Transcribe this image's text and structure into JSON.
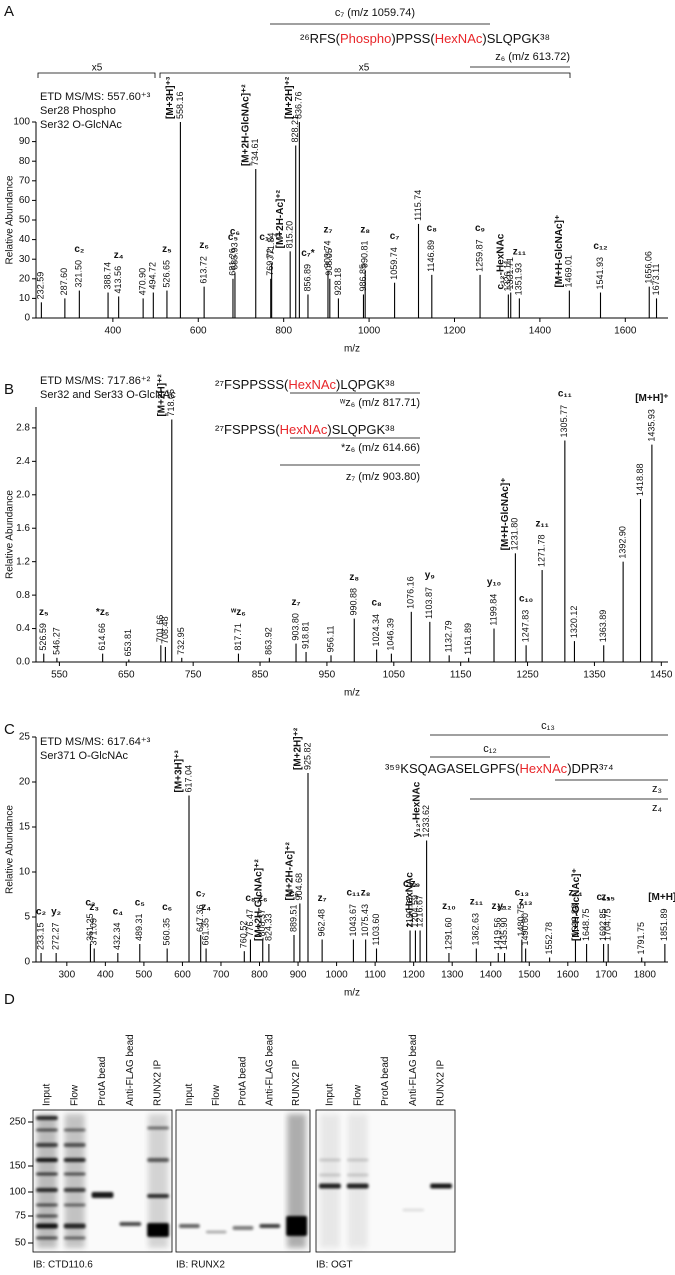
{
  "chart_data": [
    {
      "type": "stem",
      "panel": "A",
      "notes": [
        "ETD MS/MS: 557.60⁺³",
        "Ser28 Phospho",
        "Ser32 O-GlcNAc"
      ],
      "sequences": [
        [
          {
            "text": "²⁶RFS("
          },
          {
            "text": "Phospho",
            "color": "#e8262a"
          },
          {
            "text": ")PPSS("
          },
          {
            "text": "HexNAc",
            "color": "#e8262a"
          },
          {
            "text": ")SLQPGK³⁸"
          }
        ]
      ],
      "fragments": [
        "c₇ (m/z 1059.74)",
        "z₆ (m/z 613.72)"
      ],
      "scale_marks": [
        "x5",
        "x5"
      ],
      "x_label": "m/z",
      "y_label": "Relative Abundance",
      "xlim": [
        220,
        1700
      ],
      "xticks": [
        400,
        600,
        800,
        1000,
        1200,
        1400,
        1600
      ],
      "ylim": [
        0,
        100
      ],
      "yticks": [
        0,
        10,
        20,
        30,
        40,
        50,
        60,
        70,
        80,
        90,
        100
      ],
      "color": "#000000",
      "ion_color": "#2f63b0",
      "x": [
        232.59,
        {
          "value": 287.6,
          "label": "287.60"
        },
        {
          "value": 321.5,
          "label": "321.50"
        },
        388.74,
        413.56,
        {
          "value": 470.9,
          "label": "470.90"
        },
        494.72,
        526.65,
        558.16,
        613.72,
        681.26,
        685.93,
        734.61,
        769.72,
        771.84,
        {
          "value": 815.2,
          "label": "815.20"
        },
        828.21,
        836.76,
        856.89,
        903.74,
        908.05,
        928.18,
        986.85,
        990.81,
        1059.74,
        1115.74,
        1146.89,
        1259.87,
        1326.11,
        1331.71,
        1351.93,
        1469.01,
        1541.93,
        1656.06,
        1673.11
      ],
      "values": [
        8,
        10,
        14,
        13,
        11,
        10,
        13,
        14,
        100,
        16,
        20,
        23,
        76,
        20,
        28,
        34,
        88,
        100,
        12,
        24,
        20,
        10,
        12,
        24,
        18,
        48,
        22,
        22,
        12,
        13,
        10,
        14,
        13,
        16,
        10
      ],
      "ions": [
        null,
        null,
        "c₂",
        null,
        "z₄",
        null,
        null,
        "z₅",
        "[M+3H]⁺³",
        "z₆",
        "c₅",
        "c₆",
        "[M+2H-GlcNAc]⁺²",
        "c₁₂⁺²",
        null,
        "[M+2H-Ac]⁺²",
        null,
        "[M+2H]⁺²",
        "c₇*",
        "z₇",
        null,
        null,
        null,
        "z₈",
        "c₇",
        null,
        "c₈",
        "c₉",
        null,
        "c₁₂-HexNAc",
        "z₁₁",
        "[M+H-GlcNAc]⁺",
        "c₁₂",
        null,
        null
      ]
    },
    {
      "type": "stem",
      "panel": "B",
      "notes": [
        "ETD MS/MS: 717.86⁺²",
        "Ser32 and Ser33 O-GlcNAc"
      ],
      "sequences": [
        [
          {
            "text": "²⁷FSPPSSS("
          },
          {
            "text": "HexNAc",
            "color": "#e8262a"
          },
          {
            "text": ")LQPGK³⁸"
          }
        ],
        [
          {
            "text": "²⁷FSPPSS("
          },
          {
            "text": "HexNAc",
            "color": "#e8262a"
          },
          {
            "text": ")SLQPGK³⁸"
          }
        ]
      ],
      "fragments": [
        "ʷz₆ (m/z 817.71)",
        "*z₆ (m/z 614.66)",
        "z₇ (m/z 903.80)"
      ],
      "x_label": "m/z",
      "y_label": "Relative Abundance",
      "xlim": [
        515,
        1460
      ],
      "xticks": [
        550,
        650,
        750,
        850,
        950,
        1050,
        1150,
        1250,
        1350,
        1450
      ],
      "ylim": [
        0,
        3.05
      ],
      "yticks": [
        {
          "value": 0,
          "label": "0.0"
        },
        0.4,
        0.8,
        1.2,
        1.6,
        {
          "value": 2,
          "label": "2.0"
        },
        2.4,
        2.8
      ],
      "color": "#000000",
      "ion_color": "#2f63b0",
      "x": [
        526.59,
        546.27,
        614.66,
        653.81,
        701.66,
        708.48,
        718.05,
        732.95,
        817.71,
        863.92,
        {
          "value": 903.8,
          "label": "903.80"
        },
        918.81,
        956.11,
        990.88,
        1024.34,
        1046.39,
        1076.16,
        1103.87,
        1132.79,
        1161.89,
        1199.84,
        {
          "value": 1231.8,
          "label": "1231.80"
        },
        1247.83,
        1271.78,
        1305.77,
        1320.12,
        1363.89,
        {
          "value": 1392.9,
          "label": "1392.90"
        },
        1418.88,
        1435.93
      ],
      "values": [
        0.1,
        0.05,
        0.1,
        0.03,
        0.2,
        0.18,
        2.9,
        0.05,
        0.1,
        0.05,
        0.22,
        0.12,
        0.08,
        0.52,
        0.15,
        0.1,
        0.6,
        0.48,
        0.08,
        0.05,
        0.4,
        1.3,
        0.2,
        1.1,
        2.65,
        0.25,
        0.2,
        1.2,
        1.95,
        2.6
      ],
      "ions": [
        "z₅",
        null,
        "*z₆",
        null,
        null,
        null,
        "[M+2H]⁺²",
        null,
        "ʷz₆",
        null,
        "z₇",
        null,
        null,
        "z₈",
        "c₈",
        null,
        null,
        "y₉",
        null,
        null,
        "y₁₀",
        "[M+H-GlcNAc]⁺",
        "c₁₀",
        "z₁₁",
        "c₁₁",
        null,
        null,
        null,
        null,
        "[M+H]⁺"
      ]
    },
    {
      "type": "stem",
      "panel": "C",
      "notes": [
        "ETD MS/MS: 617.64⁺³",
        "Ser371 O-GlcNAc"
      ],
      "sequences": [
        [
          {
            "text": "³⁵⁹KSQAGASELGPFS("
          },
          {
            "text": "HexNAc",
            "color": "#e8262a"
          },
          {
            "text": ")DPR³⁷⁴"
          }
        ]
      ],
      "fragments": [
        "c₁₃",
        "c₁₂",
        "z₃",
        "z₄"
      ],
      "x_label": "m/z",
      "y_label": "Relative Abundance",
      "xlim": [
        220,
        1860
      ],
      "xticks": [
        300,
        400,
        500,
        600,
        700,
        800,
        900,
        1000,
        1100,
        1200,
        1300,
        1400,
        1500,
        1600,
        1700,
        1800
      ],
      "ylim": [
        0,
        25
      ],
      "yticks": [
        0,
        5,
        10,
        15,
        20,
        25
      ],
      "color": "#000000",
      "ion_color": "#2f63b0",
      "x": [
        233.15,
        272.27,
        361.25,
        371.09,
        432.34,
        489.31,
        560.35,
        617.04,
        647.36,
        661.35,
        760.52,
        776.47,
        808.37,
        824.33,
        889.51,
        904.68,
        925.82,
        962.48,
        1043.67,
        1075.43,
        {
          "value": 1103.6,
          "label": "1103.60"
        },
        1190.67,
        1204.59,
        1216.67,
        1233.62,
        {
          "value": 1291.6,
          "label": "1291.60"
        },
        1362.63,
        1419.56,
        {
          "value": 1435.9,
          "label": "1435.90"
        },
        1480.75,
        {
          "value": 1490.6,
          "label": "1490.60"
        },
        1552.78,
        1619.88,
        1648.75,
        1692.85,
        1704.75,
        1791.75,
        1851.89
      ],
      "values": [
        1,
        1,
        2,
        1.5,
        1,
        2,
        1.5,
        18.5,
        3,
        1.5,
        1.2,
        2.5,
        2.5,
        2,
        3,
        6.5,
        21,
        2.5,
        2.5,
        2.5,
        1.5,
        3.5,
        3.5,
        3.5,
        13.5,
        1,
        1.5,
        1,
        1,
        2.5,
        1.5,
        0.5,
        2.5,
        2,
        2,
        2,
        0.5,
        2
      ],
      "ions": [
        "c₂",
        "y₂",
        "c₃",
        "z₃",
        "c₄",
        "c₅",
        "c₆",
        "[M+3H]⁺³",
        "c₇",
        "z₄",
        null,
        "c₈",
        "z₆",
        "[M+2H-GlcNAc]⁺²",
        "c₉",
        "[M+2H-Ac]⁺²",
        "[M+2H]⁺²",
        "z₇",
        "c₁₁",
        "z₈",
        null,
        "c₁₂",
        "z₉",
        "z₁₂-HexNAc",
        "y₁₂-HexNAc",
        "z₁₀",
        "z₁₁",
        "z₁₂",
        "y₁₂",
        "c₁₃",
        "z₁₃",
        null,
        "z₁₄",
        "[M+H-GlcNAc]⁺",
        "c₁₅",
        "z₁₅",
        null,
        "[M+H]⁺"
      ]
    }
  ],
  "blot": {
    "panel": "D",
    "lanes": [
      "Input",
      "Flow",
      "ProtA bead",
      "Anti-FLAG bead",
      "RUNX2 IP"
    ],
    "markers": [
      250,
      150,
      100,
      75,
      50
    ],
    "blots": [
      {
        "caption": "IB: CTD110.6"
      },
      {
        "caption": "IB: RUNX2"
      },
      {
        "caption": "IB: OGT"
      }
    ]
  }
}
